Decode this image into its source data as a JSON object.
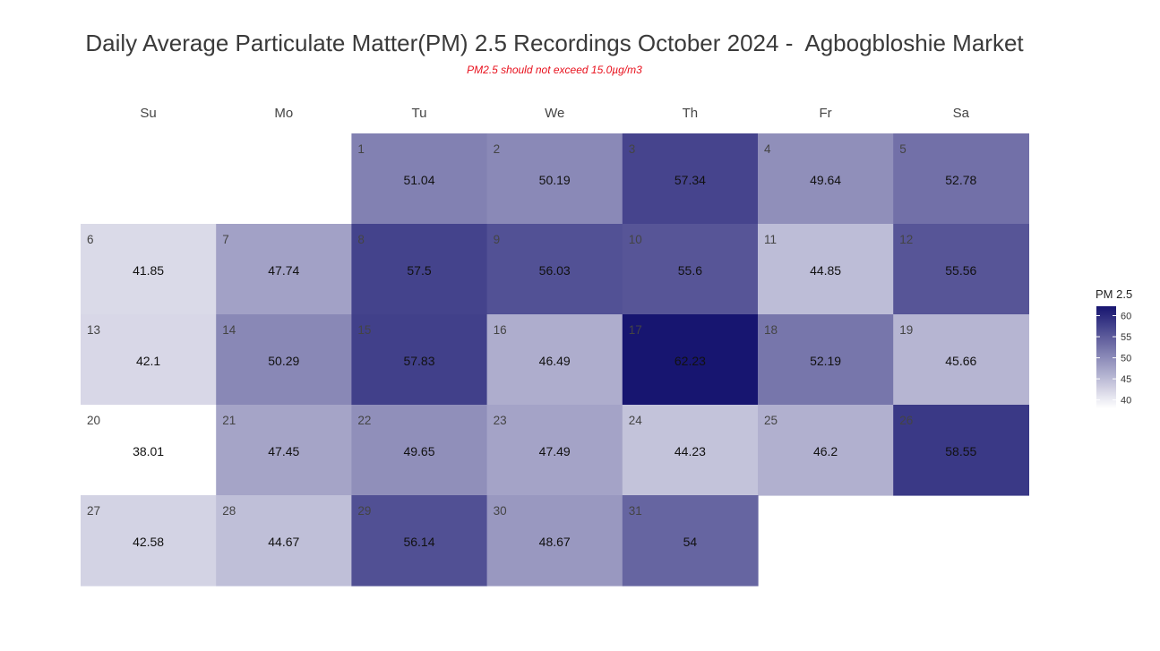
{
  "title": "Daily Average Particulate Matter(PM) 2.5 Recordings October 2024 -  Agbogbloshie Market",
  "subtitle": "PM2.5 should not exceed 15.0µg/m3",
  "colors": {
    "low": "#ffffff",
    "high": "#171570",
    "subtitle": "#e8111d"
  },
  "chart_data": {
    "type": "heatmap",
    "layout": "calendar",
    "month": "October 2024",
    "first_weekday_index": 2,
    "weekdays": [
      "Su",
      "Mo",
      "Tu",
      "We",
      "Th",
      "Fr",
      "Sa"
    ],
    "days": [
      1,
      2,
      3,
      4,
      5,
      6,
      7,
      8,
      9,
      10,
      11,
      12,
      13,
      14,
      15,
      16,
      17,
      18,
      19,
      20,
      21,
      22,
      23,
      24,
      25,
      26,
      27,
      28,
      29,
      30,
      31
    ],
    "values": [
      51.04,
      50.19,
      57.34,
      49.64,
      52.78,
      41.85,
      47.74,
      57.5,
      56.03,
      55.6,
      44.85,
      55.56,
      42.1,
      50.29,
      57.83,
      46.49,
      62.23,
      52.19,
      45.66,
      38.01,
      47.45,
      49.65,
      47.49,
      44.23,
      46.2,
      58.55,
      42.58,
      44.67,
      56.14,
      48.67,
      54
    ],
    "value_labels": [
      "51.04",
      "50.19",
      "57.34",
      "49.64",
      "52.78",
      "41.85",
      "47.74",
      "57.5",
      "56.03",
      "55.6",
      "44.85",
      "55.56",
      "42.1",
      "50.29",
      "57.83",
      "46.49",
      "62.23",
      "52.19",
      "45.66",
      "38.01",
      "47.45",
      "49.65",
      "47.49",
      "44.23",
      "46.2",
      "58.55",
      "42.58",
      "44.67",
      "56.14",
      "48.67",
      "54"
    ],
    "color_range": [
      38.01,
      62.23
    ],
    "legend": {
      "title": "PM 2.5",
      "ticks": [
        40,
        45,
        50,
        55,
        60
      ],
      "tick_labels": [
        "40",
        "45",
        "50",
        "55",
        "60"
      ],
      "position": "right"
    }
  }
}
